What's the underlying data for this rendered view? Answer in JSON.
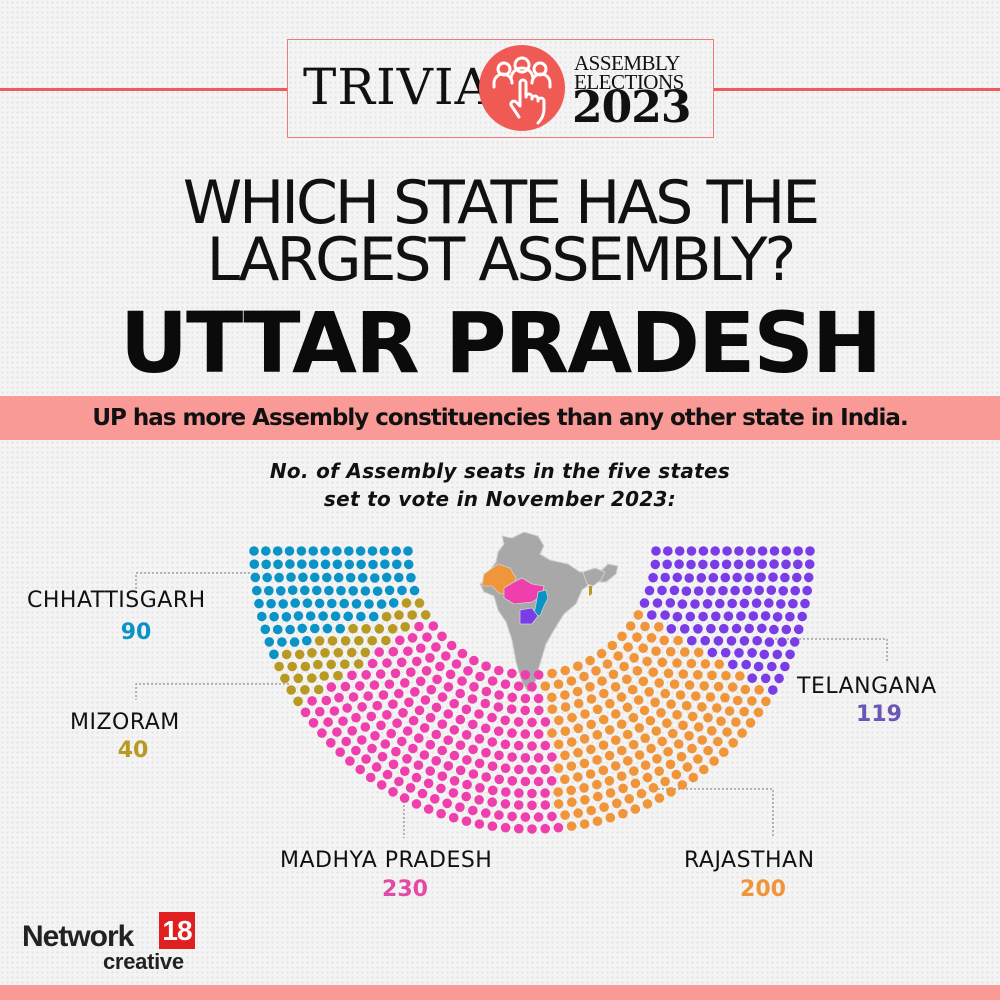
{
  "header": {
    "trivia": "TRIVIA",
    "logo_icon": "voters-hand-pointer-icon",
    "event_line1": "ASSEMBLY",
    "event_line2": "ELECTIONS",
    "event_year": "2023",
    "accent_color": "#f05a55"
  },
  "question": {
    "line1": "WHICH STATE HAS THE",
    "line2": "LARGEST ASSEMBLY?"
  },
  "answer": "UTTAR PRADESH",
  "banner": {
    "text": "UP has more Assembly constituencies than any other state in India.",
    "color": "#fa9a96"
  },
  "subtitle": {
    "line1": "No. of Assembly seats in the five states",
    "line2": "set to vote in November 2023:"
  },
  "chart_data": {
    "type": "parliament-hemicycle",
    "title": "No. of Assembly seats in the five states set to vote in November 2023:",
    "categories": [
      "CHHATTISGARH",
      "MIZORAM",
      "MADHYA PRADESH",
      "RAJASTHAN",
      "TELANGANA"
    ],
    "values": [
      90,
      40,
      230,
      200,
      119
    ],
    "colors": [
      "#0a93c6",
      "#b89a22",
      "#ee3fad",
      "#f0953a",
      "#7a3ce6"
    ],
    "total": 679,
    "rows": 14,
    "legend_position": "labels around chart"
  },
  "labels": {
    "chhattisgarh": {
      "name": "CHHATTISGARH",
      "value": "90"
    },
    "mizoram": {
      "name": "MIZORAM",
      "value": "40"
    },
    "madhya_pradesh": {
      "name": "MADHYA PRADESH",
      "value": "230"
    },
    "rajasthan": {
      "name": "RAJASTHAN",
      "value": "200"
    },
    "telangana": {
      "name": "TELANGANA",
      "value": "119"
    }
  },
  "map": {
    "icon": "india-map-icon",
    "base_color": "#a8a8a8"
  },
  "footer": {
    "brand": "Network",
    "brand_number": "18",
    "brand_sub": "creative"
  }
}
